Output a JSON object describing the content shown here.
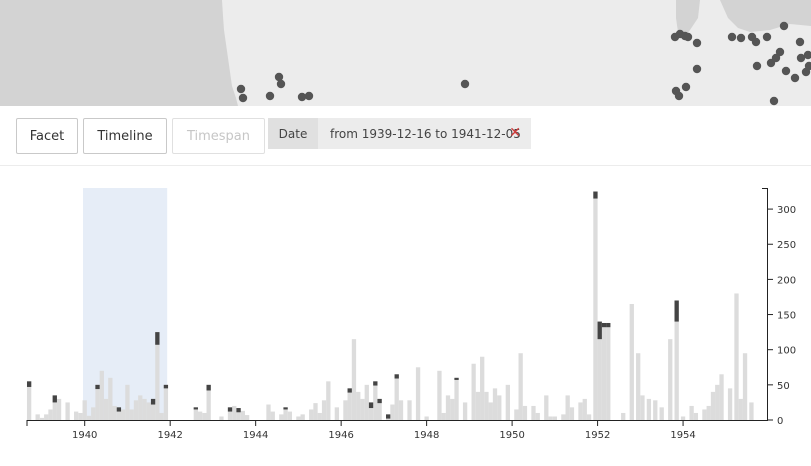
{
  "toolbar": {
    "facet_label": "Facet",
    "timeline_label": "Timeline",
    "timespan_label": "Timespan",
    "filter_key": "Date",
    "filter_value": "from 1939-12-16 to 1941-12-05",
    "remove_icon": "close-icon",
    "remove_color": "#d23b3b"
  },
  "map": {
    "land_color": "#d3d3d3",
    "water_color": "#ececec",
    "marker_color": "#555555"
  },
  "chart_data": {
    "type": "bar",
    "x_range": [
      1938.65,
      1955.8
    ],
    "ylim": [
      0,
      330
    ],
    "x_ticks": [
      "1940",
      "1942",
      "1944",
      "1946",
      "1948",
      "1950",
      "1952",
      "1954"
    ],
    "y_ticks": [
      "0",
      "50",
      "100",
      "150",
      "200",
      "250",
      "300"
    ],
    "selection": {
      "start": 1939.96,
      "end": 1941.93
    },
    "colors": {
      "bar": "#dcdcdc",
      "bar_dark": "#444444",
      "selection": "#e6edf7"
    },
    "values": [
      [
        1938.7,
        55
      ],
      [
        1938.9,
        8
      ],
      [
        1939.0,
        3
      ],
      [
        1939.1,
        8
      ],
      [
        1939.2,
        15
      ],
      [
        1939.3,
        35
      ],
      [
        1939.4,
        30
      ],
      [
        1939.6,
        25
      ],
      [
        1939.8,
        12
      ],
      [
        1939.9,
        10
      ],
      [
        1940.0,
        28
      ],
      [
        1940.1,
        6
      ],
      [
        1940.2,
        18
      ],
      [
        1940.3,
        50
      ],
      [
        1940.4,
        70
      ],
      [
        1940.5,
        30
      ],
      [
        1940.6,
        60
      ],
      [
        1940.7,
        20
      ],
      [
        1940.8,
        18
      ],
      [
        1940.9,
        15
      ],
      [
        1941.0,
        50
      ],
      [
        1941.1,
        15
      ],
      [
        1941.2,
        28
      ],
      [
        1941.3,
        35
      ],
      [
        1941.4,
        30
      ],
      [
        1941.5,
        25
      ],
      [
        1941.6,
        30
      ],
      [
        1941.7,
        125
      ],
      [
        1941.8,
        10
      ],
      [
        1941.9,
        50
      ],
      [
        1942.6,
        18
      ],
      [
        1942.7,
        12
      ],
      [
        1942.8,
        10
      ],
      [
        1942.9,
        50
      ],
      [
        1943.2,
        5
      ],
      [
        1943.4,
        18
      ],
      [
        1943.5,
        20
      ],
      [
        1943.6,
        17
      ],
      [
        1943.7,
        13
      ],
      [
        1943.8,
        7
      ],
      [
        1944.3,
        22
      ],
      [
        1944.4,
        12
      ],
      [
        1944.6,
        8
      ],
      [
        1944.7,
        18
      ],
      [
        1944.8,
        12
      ],
      [
        1945.0,
        5
      ],
      [
        1945.1,
        8
      ],
      [
        1945.3,
        15
      ],
      [
        1945.4,
        24
      ],
      [
        1945.5,
        10
      ],
      [
        1945.6,
        28
      ],
      [
        1945.7,
        55
      ],
      [
        1945.9,
        18
      ],
      [
        1946.1,
        28
      ],
      [
        1946.2,
        45
      ],
      [
        1946.3,
        115
      ],
      [
        1946.4,
        40
      ],
      [
        1946.5,
        30
      ],
      [
        1946.6,
        50
      ],
      [
        1946.7,
        25
      ],
      [
        1946.8,
        55
      ],
      [
        1946.9,
        30
      ],
      [
        1947.1,
        8
      ],
      [
        1947.2,
        22
      ],
      [
        1947.3,
        65
      ],
      [
        1947.4,
        28
      ],
      [
        1947.6,
        28
      ],
      [
        1947.8,
        75
      ],
      [
        1948.0,
        5
      ],
      [
        1948.3,
        70
      ],
      [
        1948.4,
        10
      ],
      [
        1948.5,
        35
      ],
      [
        1948.6,
        30
      ],
      [
        1948.7,
        60
      ],
      [
        1948.9,
        25
      ],
      [
        1949.1,
        80
      ],
      [
        1949.2,
        40
      ],
      [
        1949.3,
        90
      ],
      [
        1949.4,
        40
      ],
      [
        1949.5,
        25
      ],
      [
        1949.6,
        45
      ],
      [
        1949.7,
        35
      ],
      [
        1949.9,
        50
      ],
      [
        1950.1,
        15
      ],
      [
        1950.2,
        95
      ],
      [
        1950.3,
        20
      ],
      [
        1950.5,
        20
      ],
      [
        1950.6,
        10
      ],
      [
        1950.8,
        35
      ],
      [
        1950.9,
        5
      ],
      [
        1951.0,
        5
      ],
      [
        1951.2,
        8
      ],
      [
        1951.3,
        35
      ],
      [
        1951.4,
        18
      ],
      [
        1951.6,
        25
      ],
      [
        1951.7,
        30
      ],
      [
        1951.8,
        8
      ],
      [
        1951.95,
        325
      ],
      [
        1952.05,
        140
      ],
      [
        1952.15,
        138
      ],
      [
        1952.25,
        138
      ],
      [
        1952.6,
        10
      ],
      [
        1952.8,
        165
      ],
      [
        1952.95,
        95
      ],
      [
        1953.05,
        35
      ],
      [
        1953.2,
        30
      ],
      [
        1953.35,
        28
      ],
      [
        1953.5,
        18
      ],
      [
        1953.7,
        115
      ],
      [
        1953.85,
        170
      ],
      [
        1954.0,
        5
      ],
      [
        1954.2,
        20
      ],
      [
        1954.3,
        10
      ],
      [
        1954.5,
        15
      ],
      [
        1954.6,
        20
      ],
      [
        1954.7,
        40
      ],
      [
        1954.8,
        50
      ],
      [
        1954.9,
        65
      ],
      [
        1955.1,
        45
      ],
      [
        1955.25,
        180
      ],
      [
        1955.35,
        30
      ],
      [
        1955.45,
        95
      ],
      [
        1955.6,
        25
      ]
    ],
    "dark_tops": [
      [
        1938.7,
        8
      ],
      [
        1939.3,
        10
      ],
      [
        1940.3,
        6
      ],
      [
        1940.8,
        6
      ],
      [
        1941.6,
        8
      ],
      [
        1941.7,
        18
      ],
      [
        1941.9,
        5
      ],
      [
        1942.6,
        3
      ],
      [
        1942.9,
        8
      ],
      [
        1943.4,
        6
      ],
      [
        1943.6,
        6
      ],
      [
        1944.7,
        3
      ],
      [
        1946.2,
        6
      ],
      [
        1946.7,
        8
      ],
      [
        1946.8,
        6
      ],
      [
        1946.9,
        6
      ],
      [
        1947.1,
        6
      ],
      [
        1947.3,
        6
      ],
      [
        1948.7,
        3
      ],
      [
        1951.95,
        10
      ],
      [
        1952.05,
        25
      ],
      [
        1952.15,
        6
      ],
      [
        1952.25,
        6
      ],
      [
        1953.85,
        30
      ]
    ]
  }
}
